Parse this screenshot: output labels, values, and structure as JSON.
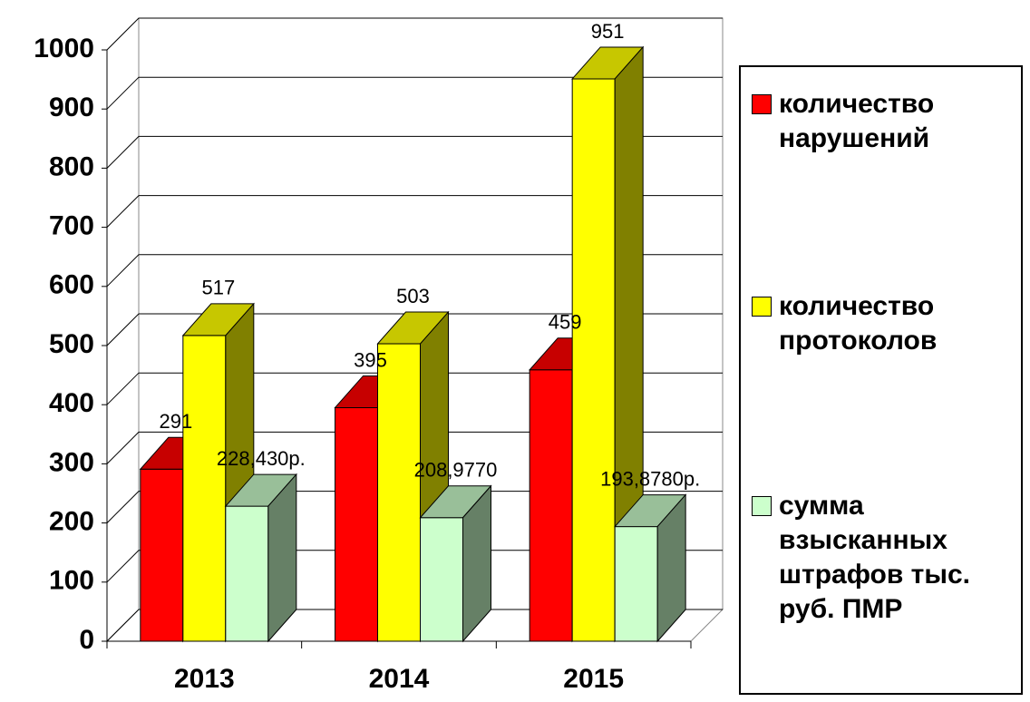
{
  "chart_data": {
    "type": "bar3d",
    "categories": [
      "2013",
      "2014",
      "2015"
    ],
    "series": [
      {
        "name": "количество нарушений",
        "color": "#ff0000",
        "values": [
          291,
          395,
          459
        ]
      },
      {
        "name": "количество протоколов",
        "color": "#ffff00",
        "values": [
          517,
          503,
          951
        ]
      },
      {
        "name": "сумма взысканных штрафов тыс. руб. ПМР",
        "color": "#ccffcc",
        "values": [
          228.43,
          208.977,
          193.878
        ],
        "value_labels": [
          "228,430р.",
          "208,9770",
          "193,8780р."
        ]
      }
    ],
    "ylim": [
      0,
      1000
    ],
    "yticks": [
      0,
      100,
      200,
      300,
      400,
      500,
      600,
      700,
      800,
      900,
      1000
    ],
    "grid": true,
    "legend": "right"
  }
}
